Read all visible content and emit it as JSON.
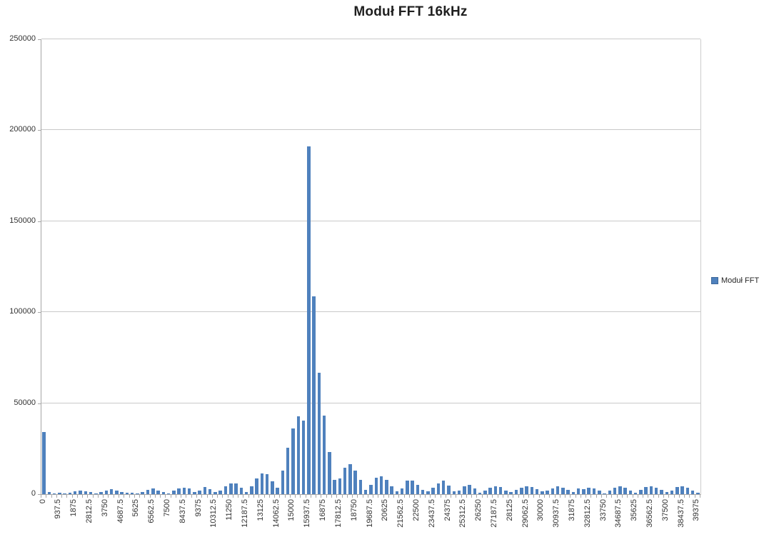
{
  "title": "Moduł FFT 16kHz",
  "legend": {
    "label": "Moduł FFT",
    "swatch_color": "#4F81BD"
  },
  "chart_data": {
    "type": "bar",
    "title": "Moduł FFT 16kHz",
    "series_name": "Moduł FFT",
    "xlabel": "",
    "ylabel": "",
    "ylim": [
      0,
      250000
    ],
    "yticks": [
      0,
      50000,
      100000,
      150000,
      200000,
      250000
    ],
    "y_tick_labels": [
      "0",
      "50000",
      "100000",
      "150000",
      "200000",
      "250000"
    ],
    "grid": true,
    "legend_position": "right",
    "bar_color": "#4F81BD",
    "gridline_color": "#C9C9C9",
    "axis_color": "#A6A6A6",
    "x_start": 0,
    "x_step": 312.5,
    "x_label_every": 3,
    "x_tick_labels": [
      "0",
      "937.5",
      "1875",
      "2812.5",
      "3750",
      "4687.5",
      "5625",
      "6562.5",
      "7500",
      "8437.5",
      "9375",
      "10312.5",
      "11250",
      "12187.5",
      "13125",
      "14062.5",
      "15000",
      "15937.5",
      "16875",
      "17812.5",
      "18750",
      "19687.5",
      "20625",
      "21562.5",
      "22500",
      "23437.5",
      "24375",
      "25312.5",
      "26250",
      "27187.5",
      "28125",
      "29062.5",
      "30000",
      "30937.5",
      "31875",
      "32812.5",
      "33750",
      "34687.5",
      "35625",
      "36562.5",
      "37500",
      "38437.5",
      "39375"
    ],
    "categories": [
      0,
      312.5,
      625,
      937.5,
      1250,
      1562.5,
      1875,
      2187.5,
      2500,
      2812.5,
      3125,
      3437.5,
      3750,
      4062.5,
      4375,
      4687.5,
      5000,
      5312.5,
      5625,
      5937.5,
      6250,
      6562.5,
      6875,
      7187.5,
      7500,
      7812.5,
      8125,
      8437.5,
      8750,
      9062.5,
      9375,
      9687.5,
      10000,
      10312.5,
      10625,
      10937.5,
      11250,
      11562.5,
      11875,
      12187.5,
      12500,
      12812.5,
      13125,
      13437.5,
      13750,
      14062.5,
      14375,
      14687.5,
      15000,
      15312.5,
      15625,
      15937.5,
      16250,
      16562.5,
      16875,
      17187.5,
      17500,
      17812.5,
      18125,
      18437.5,
      18750,
      19062.5,
      19375,
      19687.5,
      20000,
      20312.5,
      20625,
      20937.5,
      21250,
      21562.5,
      21875,
      22187.5,
      22500,
      22812.5,
      23125,
      23437.5,
      23750,
      24062.5,
      24375,
      24687.5,
      25000,
      25312.5,
      25625,
      25937.5,
      26250,
      26562.5,
      26875,
      27187.5,
      27500,
      27812.5,
      28125,
      28437.5,
      28750,
      29062.5,
      29375,
      29687.5,
      30000,
      30312.5,
      30625,
      30937.5,
      31250,
      31562.5,
      31875,
      32187.5,
      32500,
      32812.5,
      33125,
      33437.5,
      33750,
      34062.5,
      34375,
      34687.5,
      35000,
      35312.5,
      35625,
      35937.5,
      36250,
      36562.5,
      36875,
      37187.5,
      37500,
      37812.5,
      38125,
      38437.5,
      38750,
      39062.5,
      39375
    ],
    "values": [
      34000,
      1050,
      400,
      650,
      400,
      900,
      1700,
      2100,
      1700,
      1050,
      400,
      1200,
      2100,
      2750,
      2100,
      1050,
      650,
      800,
      400,
      1300,
      2400,
      3100,
      1800,
      1050,
      400,
      1800,
      3100,
      3650,
      3100,
      1050,
      2100,
      4000,
      2750,
      1050,
      1800,
      4200,
      5800,
      6000,
      3650,
      1300,
      4400,
      8650,
      11500,
      11000,
      7050,
      3650,
      12800,
      25600,
      36100,
      42900,
      40550,
      191000,
      108700,
      66800,
      43300,
      23000,
      7700,
      8600,
      14500,
      16500,
      12800,
      8000,
      2400,
      5000,
      8900,
      9900,
      8000,
      4400,
      1450,
      3100,
      7300,
      7300,
      5000,
      2400,
      1450,
      3650,
      5800,
      7600,
      4700,
      1450,
      1800,
      4500,
      5100,
      3100,
      800,
      1800,
      3400,
      4400,
      4000,
      2100,
      1050,
      2400,
      3650,
      4400,
      4000,
      2750,
      1450,
      2100,
      3100,
      4200,
      3650,
      2400,
      1050,
      3000,
      2750,
      3650,
      3100,
      1800,
      400,
      2100,
      3650,
      4200,
      3400,
      1800,
      800,
      2400,
      4000,
      4400,
      3650,
      2400,
      1050,
      1800,
      4000,
      4400,
      3650,
      2100,
      800
    ]
  }
}
